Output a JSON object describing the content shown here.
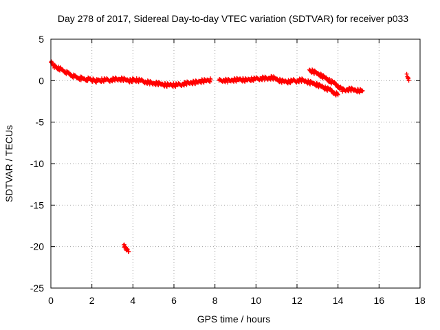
{
  "chart_data": {
    "type": "scatter",
    "title": "Day 278 of 2017, Sidereal Day-to-day VTEC variation (SDTVAR) for receiver p033",
    "xlabel": "GPS time / hours",
    "ylabel": "SDTVAR / TECUs",
    "xlim": [
      0,
      18
    ],
    "ylim": [
      -25,
      5
    ],
    "xticks": [
      0,
      2,
      4,
      6,
      8,
      10,
      12,
      14,
      16,
      18
    ],
    "yticks": [
      5,
      0,
      -5,
      -10,
      -15,
      -20,
      -25
    ],
    "grid": true,
    "marker": "plus",
    "color": "#ff0000",
    "series": [
      {
        "name": "SDTVAR",
        "x": [
          0.0,
          0.08,
          0.15,
          0.25,
          0.4,
          0.55,
          0.7,
          0.85,
          1.0,
          1.15,
          1.3,
          1.45,
          1.6,
          1.75,
          1.9,
          2.15,
          2.3,
          2.5,
          2.7,
          2.9,
          3.1,
          3.3,
          3.5,
          3.7,
          3.9,
          4.0,
          4.2,
          4.4,
          4.6,
          4.8,
          5.0,
          5.2,
          5.4,
          5.6,
          5.8,
          6.0,
          6.2,
          6.4,
          6.6,
          6.8,
          7.0,
          7.2,
          7.4,
          7.6,
          7.8,
          8.2,
          8.4,
          8.6,
          8.8,
          9.0,
          9.2,
          9.4,
          9.6,
          9.8,
          10.0,
          10.2,
          10.4,
          10.6,
          10.8,
          11.0,
          11.2,
          11.4,
          11.6,
          11.8,
          12.0,
          12.2,
          12.4,
          12.6,
          12.8,
          13.0,
          13.2,
          13.4,
          13.6,
          13.8,
          14.0,
          12.6,
          12.8,
          13.0,
          13.2,
          13.4,
          13.6,
          13.8,
          14.0,
          14.2,
          14.4,
          14.6,
          14.8,
          15.0,
          15.2,
          17.35,
          17.4,
          17.45,
          3.55,
          3.6,
          3.65,
          3.7,
          3.75,
          3.8
        ],
        "y": [
          2.2,
          2.0,
          1.8,
          1.6,
          1.5,
          1.3,
          1.1,
          0.9,
          0.7,
          0.5,
          0.4,
          0.3,
          0.25,
          0.2,
          0.2,
          0.0,
          0.0,
          0.1,
          0.1,
          0.1,
          0.2,
          0.2,
          0.2,
          0.1,
          0.0,
          0.1,
          0.1,
          0.0,
          -0.1,
          -0.2,
          -0.3,
          -0.3,
          -0.4,
          -0.5,
          -0.5,
          -0.5,
          -0.5,
          -0.4,
          -0.3,
          -0.2,
          -0.2,
          -0.1,
          0.0,
          0.0,
          0.1,
          0.0,
          0.1,
          0.0,
          0.1,
          0.1,
          0.2,
          0.1,
          0.1,
          0.2,
          0.2,
          0.3,
          0.3,
          0.3,
          0.4,
          0.2,
          0.0,
          -0.1,
          -0.1,
          0.0,
          0.0,
          0.1,
          0.0,
          -0.2,
          -0.3,
          -0.5,
          -0.7,
          -0.9,
          -1.1,
          -1.4,
          -1.7,
          1.3,
          1.1,
          0.9,
          0.6,
          0.3,
          0.0,
          -0.3,
          -0.6,
          -1.1,
          -1.1,
          -1.0,
          -1.1,
          -1.2,
          -1.2,
          0.8,
          0.3,
          0.0,
          -19.8,
          -20.0,
          -20.1,
          -20.3,
          -20.4,
          -20.6
        ]
      }
    ]
  }
}
